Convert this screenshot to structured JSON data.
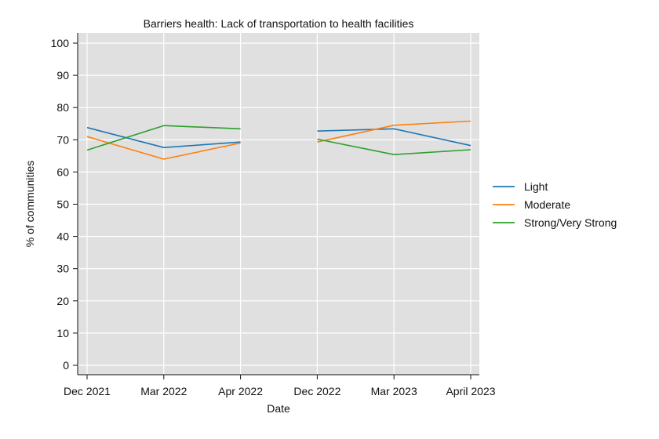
{
  "chart_data": {
    "type": "line",
    "title": "Barriers health: Lack of transportation to health facilities",
    "xlabel": "Date",
    "ylabel": "% of communities",
    "categories": [
      "Dec 2021",
      "Mar 2022",
      "Apr 2022",
      "Dec 2022",
      "Mar 2023",
      "April 2023"
    ],
    "ylim": [
      0,
      100
    ],
    "yticks": [
      "0",
      "10",
      "20",
      "30",
      "40",
      "50",
      "60",
      "70",
      "80",
      "90",
      "100"
    ],
    "grid": true,
    "legend_position": "right",
    "segments": [
      [
        0,
        1,
        2
      ],
      [
        3,
        4,
        5
      ]
    ],
    "series": [
      {
        "name": "Light",
        "color": "#1f77b4",
        "values": [
          73.8,
          67.6,
          69.3,
          72.7,
          73.4,
          68.2
        ]
      },
      {
        "name": "Moderate",
        "color": "#ff7f0e",
        "values": [
          71.0,
          64.0,
          69.0,
          69.3,
          74.5,
          75.8
        ]
      },
      {
        "name": "Strong/Very Strong",
        "color": "#2ca02c",
        "values": [
          66.8,
          74.4,
          73.4,
          70.2,
          65.4,
          66.9
        ]
      }
    ]
  }
}
